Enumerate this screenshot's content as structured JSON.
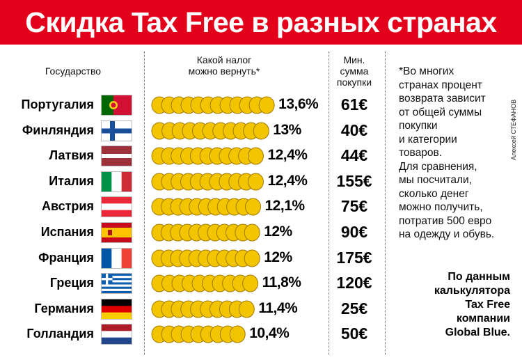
{
  "title": "Скидка Tax Free в разных странах",
  "headers": {
    "country": "Государство",
    "refund_line1": "Какой налог",
    "refund_line2": "можно вернуть*",
    "min_line1": "Мин.",
    "min_line2": "сумма",
    "min_line3": "покупки"
  },
  "note": "*Во многих\nстранах процент\nвозврата зависит\nот общей суммы\nпокупки\nи категории\nтоваров.\nДля сравнения,\nмы посчитали,\nсколько денег\nможно получить,\nпотратив 500 евро\nна одежду и обувь.",
  "source": "По данным\nкалькулятора\nTax Free\nкомпании\nGlobal Blue.",
  "credit": "Алексей СТЕФАНОВ",
  "colors": {
    "title_bg": "#e3001b",
    "coin": "#f2c500",
    "coin_edge": "#a37a00"
  },
  "chart_data": {
    "type": "bar",
    "title": "Скидка Tax Free в разных странах",
    "categories": [
      "Португалия",
      "Финляндия",
      "Латвия",
      "Италия",
      "Австрия",
      "Испания",
      "Франция",
      "Греция",
      "Германия",
      "Голландия"
    ],
    "series": [
      {
        "name": "Какой налог можно вернуть*",
        "values": [
          13.6,
          13,
          12.4,
          12.4,
          12.1,
          12,
          12,
          11.8,
          11.4,
          10.4
        ],
        "labels": [
          "13,6%",
          "13%",
          "12,4%",
          "12,4%",
          "12,1%",
          "12%",
          "12%",
          "11,8%",
          "11,4%",
          "10,4%"
        ]
      },
      {
        "name": "Мин. сумма покупки",
        "values": [
          61,
          40,
          44,
          155,
          75,
          90,
          175,
          120,
          25,
          50
        ],
        "labels": [
          "61€",
          "40€",
          "44€",
          "155€",
          "75€",
          "90€",
          "175€",
          "120€",
          "25€",
          "50€"
        ]
      }
    ],
    "flags": [
      "flag-portugal",
      "flag-finland",
      "flag-latvia",
      "flag-italy",
      "flag-austria",
      "flag-spain",
      "flag-france",
      "flag-greece",
      "flag-germany",
      "flag-netherlands"
    ]
  }
}
